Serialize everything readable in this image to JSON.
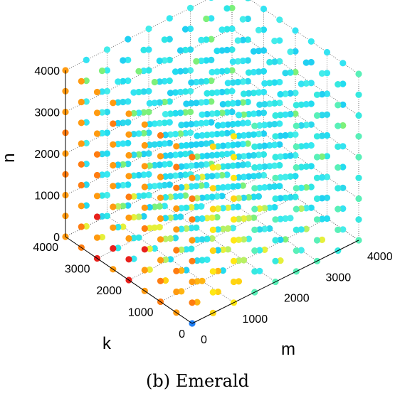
{
  "caption": "(b) Emerald",
  "chart_data": {
    "type": "scatter",
    "projection": "3d",
    "grid": true,
    "axes": {
      "m": {
        "label": "m",
        "range": [
          0,
          4000
        ],
        "ticks": [
          0,
          1000,
          2000,
          3000,
          4000
        ],
        "tick_labels": [
          "0",
          "1000",
          "2000",
          "3000",
          "4000"
        ]
      },
      "k": {
        "label": "k",
        "range": [
          0,
          4000
        ],
        "ticks": [
          0,
          1000,
          2000,
          3000,
          4000
        ],
        "tick_labels": [
          "0",
          "1000",
          "2000",
          "3000",
          "4000"
        ]
      },
      "n": {
        "label": "n",
        "range": [
          0,
          4000
        ],
        "ticks": [
          0,
          1000,
          2000,
          3000,
          4000
        ],
        "tick_labels": [
          "0",
          "1000",
          "2000",
          "3000",
          "4000"
        ]
      }
    },
    "grid_points_per_axis": [
      0,
      500,
      1000,
      1500,
      2000,
      2500,
      3000,
      3500,
      4000
    ],
    "colormap": "jet",
    "color_rule": "points along the k axis near m=0 are orange/red; a blue point at m=0,k=0,n=0; the bulk of the cube interior is cyan/light blue with yellow-green near the front diagonal"
  }
}
